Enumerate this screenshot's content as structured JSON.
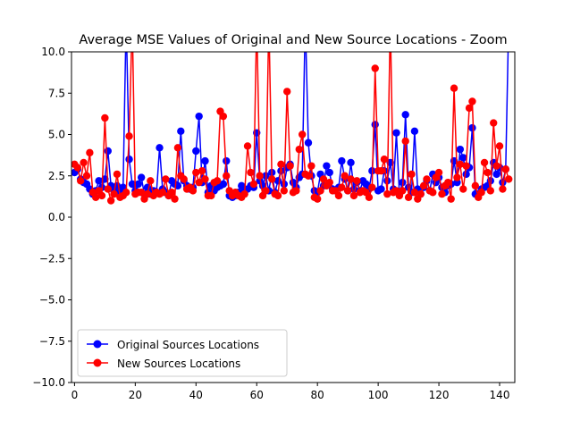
{
  "chart_data": {
    "type": "line",
    "title": "Average MSE Values of Original and New Source Locations - Zoom",
    "xlabel": "",
    "ylabel": "",
    "xlim": [
      -1,
      145
    ],
    "ylim": [
      -10,
      10
    ],
    "x_ticks": [
      0,
      20,
      40,
      60,
      80,
      100,
      120,
      140
    ],
    "y_ticks": [
      -10.0,
      -7.5,
      -5.0,
      -2.5,
      0.0,
      2.5,
      5.0,
      7.5,
      10.0
    ],
    "y_tick_labels": [
      "−10.0",
      "−7.5",
      "−5.0",
      "−2.5",
      "0.0",
      "2.5",
      "5.0",
      "7.5",
      "10.0"
    ],
    "grid": false,
    "legend_position": "lower-left",
    "series": [
      {
        "name": "Original Sources Locations",
        "color": "#0000ff",
        "x": [
          0,
          1,
          2,
          3,
          4,
          5,
          6,
          7,
          8,
          9,
          10,
          11,
          12,
          13,
          14,
          15,
          16,
          17,
          18,
          19,
          20,
          21,
          22,
          23,
          24,
          25,
          26,
          27,
          28,
          29,
          30,
          31,
          32,
          33,
          34,
          35,
          36,
          37,
          38,
          39,
          40,
          41,
          42,
          43,
          44,
          45,
          46,
          47,
          48,
          49,
          50,
          51,
          52,
          53,
          54,
          55,
          56,
          57,
          58,
          59,
          60,
          61,
          62,
          63,
          64,
          65,
          66,
          67,
          68,
          69,
          70,
          71,
          72,
          73,
          74,
          75,
          76,
          77,
          78,
          79,
          80,
          81,
          82,
          83,
          84,
          85,
          86,
          87,
          88,
          89,
          90,
          91,
          92,
          93,
          94,
          95,
          96,
          97,
          98,
          99,
          100,
          101,
          102,
          103,
          104,
          105,
          106,
          107,
          108,
          109,
          110,
          111,
          112,
          113,
          114,
          115,
          116,
          117,
          118,
          119,
          120,
          121,
          122,
          123,
          124,
          125,
          126,
          127,
          128,
          129,
          130,
          131,
          132,
          133,
          134,
          135,
          136,
          137,
          138,
          139,
          140,
          141,
          142,
          143
        ],
        "values": [
          2.7,
          2.9,
          2.3,
          2.1,
          2.0,
          1.7,
          1.4,
          1.6,
          2.2,
          1.8,
          2.3,
          4.0,
          1.9,
          1.6,
          1.9,
          1.5,
          1.8,
          12.0,
          3.5,
          2.0,
          1.6,
          2.0,
          2.4,
          1.4,
          1.8,
          1.4,
          1.6,
          1.5,
          4.2,
          1.7,
          1.5,
          1.3,
          2.2,
          2.0,
          1.9,
          5.2,
          2.2,
          1.9,
          1.7,
          1.8,
          4.0,
          6.1,
          2.1,
          3.4,
          1.5,
          1.9,
          1.6,
          1.8,
          1.9,
          2.0,
          3.4,
          1.3,
          1.2,
          1.3,
          1.5,
          1.9,
          1.6,
          1.7,
          1.9,
          1.8,
          5.1,
          2.2,
          1.9,
          2.5,
          1.6,
          2.7,
          1.5,
          2.2,
          2.8,
          2.0,
          3.0,
          3.2,
          2.1,
          1.8,
          2.4,
          2.6,
          12.0,
          4.5,
          2.5,
          1.6,
          1.5,
          2.6,
          1.9,
          3.1,
          2.7,
          1.7,
          1.6,
          1.8,
          3.4,
          2.3,
          1.6,
          3.3,
          1.7,
          2.1,
          1.6,
          2.2,
          2.0,
          1.7,
          2.8,
          5.6,
          1.6,
          1.7,
          2.8,
          2.2,
          3.3,
          1.7,
          5.1,
          1.4,
          2.1,
          6.2,
          1.8,
          1.5,
          5.2,
          1.7,
          1.4,
          1.8,
          2.2,
          1.6,
          2.6,
          2.1,
          2.4,
          1.8,
          1.5,
          1.9,
          2.0,
          3.4,
          2.1,
          4.1,
          3.6,
          2.6,
          3.0,
          5.4,
          1.4,
          1.4,
          1.7,
          1.8,
          1.9,
          2.2,
          3.3,
          2.6,
          3.0,
          2.1,
          2.9,
          12.0
        ]
      },
      {
        "name": "New Sources Locations",
        "color": "#ff0000",
        "x": [
          0,
          1,
          2,
          3,
          4,
          5,
          6,
          7,
          8,
          9,
          10,
          11,
          12,
          13,
          14,
          15,
          16,
          17,
          18,
          19,
          20,
          21,
          22,
          23,
          24,
          25,
          26,
          27,
          28,
          29,
          30,
          31,
          32,
          33,
          34,
          35,
          36,
          37,
          38,
          39,
          40,
          41,
          42,
          43,
          44,
          45,
          46,
          47,
          48,
          49,
          50,
          51,
          52,
          53,
          54,
          55,
          56,
          57,
          58,
          59,
          60,
          61,
          62,
          63,
          64,
          65,
          66,
          67,
          68,
          69,
          70,
          71,
          72,
          73,
          74,
          75,
          76,
          77,
          78,
          79,
          80,
          81,
          82,
          83,
          84,
          85,
          86,
          87,
          88,
          89,
          90,
          91,
          92,
          93,
          94,
          95,
          96,
          97,
          98,
          99,
          100,
          101,
          102,
          103,
          104,
          105,
          106,
          107,
          108,
          109,
          110,
          111,
          112,
          113,
          114,
          115,
          116,
          117,
          118,
          119,
          120,
          121,
          122,
          123,
          124,
          125,
          126,
          127,
          128,
          129,
          130,
          131,
          132,
          133,
          134,
          135,
          136,
          137,
          138,
          139,
          140,
          141,
          142,
          143
        ],
        "values": [
          3.2,
          3.0,
          2.2,
          3.3,
          2.5,
          3.9,
          1.5,
          1.2,
          1.6,
          1.3,
          6.0,
          1.7,
          1.0,
          1.4,
          2.6,
          1.2,
          1.3,
          1.5,
          4.9,
          12.0,
          1.4,
          1.5,
          1.5,
          1.1,
          1.4,
          2.2,
          1.3,
          1.5,
          1.4,
          1.5,
          2.3,
          1.3,
          1.5,
          1.1,
          4.2,
          2.5,
          2.3,
          1.7,
          1.8,
          1.6,
          2.7,
          2.1,
          2.8,
          2.3,
          1.3,
          1.3,
          2.1,
          2.2,
          6.4,
          6.1,
          2.5,
          1.6,
          1.3,
          1.5,
          1.3,
          1.2,
          1.4,
          4.3,
          2.7,
          2.0,
          12.0,
          2.5,
          1.3,
          1.6,
          12.0,
          2.3,
          1.4,
          1.3,
          3.2,
          1.6,
          7.6,
          3.1,
          1.5,
          1.6,
          4.1,
          5.0,
          2.6,
          2.5,
          3.1,
          1.2,
          1.1,
          1.6,
          2.3,
          1.9,
          2.1,
          1.6,
          1.6,
          1.3,
          1.8,
          2.5,
          1.6,
          2.3,
          1.3,
          2.2,
          1.5,
          1.6,
          1.5,
          1.2,
          1.8,
          9.0,
          2.8,
          2.8,
          3.5,
          1.4,
          12.0,
          1.5,
          1.6,
          1.3,
          1.6,
          4.6,
          1.2,
          2.6,
          1.5,
          1.1,
          1.4,
          1.9,
          2.3,
          1.6,
          1.5,
          2.4,
          2.7,
          1.4,
          1.9,
          2.1,
          1.1,
          7.8,
          2.4,
          3.2,
          1.7,
          3.1,
          6.6,
          7.0,
          1.9,
          1.2,
          1.5,
          3.3,
          2.7,
          1.6,
          5.7,
          3.1,
          4.3,
          1.7,
          2.9,
          2.3
        ]
      }
    ]
  }
}
